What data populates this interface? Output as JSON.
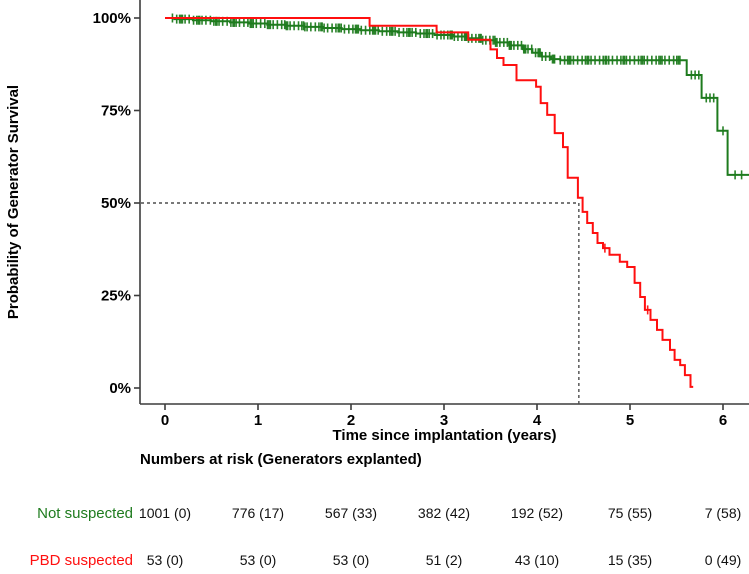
{
  "chart_data": {
    "type": "line",
    "variant": "kaplan_meier_step",
    "title": "",
    "xlabel": "Time since implantation (years)",
    "ylabel": "Probability of Generator Survival",
    "x_ticks": [
      "0",
      "1",
      "2",
      "3",
      "4",
      "5",
      "6"
    ],
    "x_tick_years": [
      0,
      1,
      2,
      3,
      4,
      5,
      6
    ],
    "y_ticks": [
      {
        "label": "0%",
        "value": 0
      },
      {
        "label": "25%",
        "value": 25
      },
      {
        "label": "50%",
        "value": 50
      },
      {
        "label": "75%",
        "value": 75
      },
      {
        "label": "100%",
        "value": 100
      }
    ],
    "xlim": [
      -0.27,
      6.28
    ],
    "ylim": [
      0,
      100
    ],
    "grid": false,
    "legend_position": "none",
    "axis_color": "#3c3c3c",
    "median_guide": {
      "pct": 50,
      "x_year": 4.45,
      "style": "dashed",
      "color": "#4d4d4d"
    },
    "series": [
      {
        "name": "Not suspected",
        "color": "#1e7b1e",
        "steps": [
          [
            0,
            100
          ],
          [
            0.1,
            99.7
          ],
          [
            0.3,
            99.4
          ],
          [
            0.5,
            99.1
          ],
          [
            0.7,
            98.8
          ],
          [
            0.9,
            98.5
          ],
          [
            1.1,
            98.2
          ],
          [
            1.3,
            97.9
          ],
          [
            1.5,
            97.6
          ],
          [
            1.7,
            97.3
          ],
          [
            1.9,
            97.0
          ],
          [
            2.1,
            96.7
          ],
          [
            2.3,
            96.4
          ],
          [
            2.5,
            96.1
          ],
          [
            2.7,
            95.8
          ],
          [
            2.9,
            95.4
          ],
          [
            3.1,
            95.0
          ],
          [
            3.25,
            94.5
          ],
          [
            3.4,
            94.0
          ],
          [
            3.55,
            93.4
          ],
          [
            3.7,
            92.6
          ],
          [
            3.85,
            91.6
          ],
          [
            3.95,
            90.6
          ],
          [
            4.05,
            89.6
          ],
          [
            4.15,
            88.9
          ],
          [
            4.25,
            88.6
          ],
          [
            5.61,
            84.6
          ],
          [
            5.77,
            78.4
          ],
          [
            5.94,
            69.5
          ],
          [
            6.05,
            57.6
          ]
        ],
        "end_year": 6.28,
        "censor_bands": [
          {
            "from": 0.08,
            "to": 2.95,
            "count": 95
          },
          {
            "from": 3.0,
            "to": 4.2,
            "count": 48
          },
          {
            "from": 4.25,
            "to": 5.55,
            "count": 42
          }
        ],
        "censor_marks": [
          5.66,
          5.7,
          5.74,
          5.82,
          5.86,
          5.9,
          6.0,
          6.13,
          6.2
        ]
      },
      {
        "name": "PBD suspected",
        "color": "#ff0f0f",
        "steps": [
          [
            0,
            100
          ],
          [
            2.2,
            97.9
          ],
          [
            2.92,
            96.1
          ],
          [
            3.26,
            94.1
          ],
          [
            3.5,
            91.5
          ],
          [
            3.57,
            89.2
          ],
          [
            3.64,
            87.3
          ],
          [
            3.78,
            83.2
          ],
          [
            3.99,
            81.4
          ],
          [
            4.04,
            77.0
          ],
          [
            4.11,
            73.8
          ],
          [
            4.19,
            68.9
          ],
          [
            4.28,
            65.1
          ],
          [
            4.33,
            56.8
          ],
          [
            4.44,
            51.4
          ],
          [
            4.49,
            47.6
          ],
          [
            4.54,
            44.6
          ],
          [
            4.6,
            41.9
          ],
          [
            4.65,
            39.2
          ],
          [
            4.71,
            37.8
          ],
          [
            4.78,
            36.0
          ],
          [
            4.89,
            34.1
          ],
          [
            4.97,
            32.7
          ],
          [
            5.05,
            28.4
          ],
          [
            5.11,
            24.6
          ],
          [
            5.16,
            21.1
          ],
          [
            5.22,
            18.4
          ],
          [
            5.29,
            15.7
          ],
          [
            5.35,
            13.0
          ],
          [
            5.43,
            10.3
          ],
          [
            5.48,
            7.6
          ],
          [
            5.54,
            6.2
          ],
          [
            5.59,
            3.5
          ],
          [
            5.65,
            0.3
          ]
        ],
        "end_year": 5.68,
        "censor_bands": [],
        "censor_marks": [
          4.73,
          5.19
        ]
      }
    ],
    "risk_table": {
      "header": "Numbers at risk (Generators explanted)",
      "columns_years": [
        0,
        1,
        2,
        3,
        4,
        5,
        6
      ],
      "rows": [
        {
          "label": "Not suspected",
          "color": "#1e7b1e",
          "values": [
            "1001 (0)",
            "776 (17)",
            "567 (33)",
            "382 (42)",
            "192 (52)",
            "75 (55)",
            "7 (58)"
          ]
        },
        {
          "label": "PBD suspected",
          "color": "#ff0f0f",
          "values": [
            "53 (0)",
            "53 (0)",
            "53 (0)",
            "51 (2)",
            "43 (10)",
            "15 (35)",
            "0 (49)"
          ]
        }
      ]
    }
  }
}
